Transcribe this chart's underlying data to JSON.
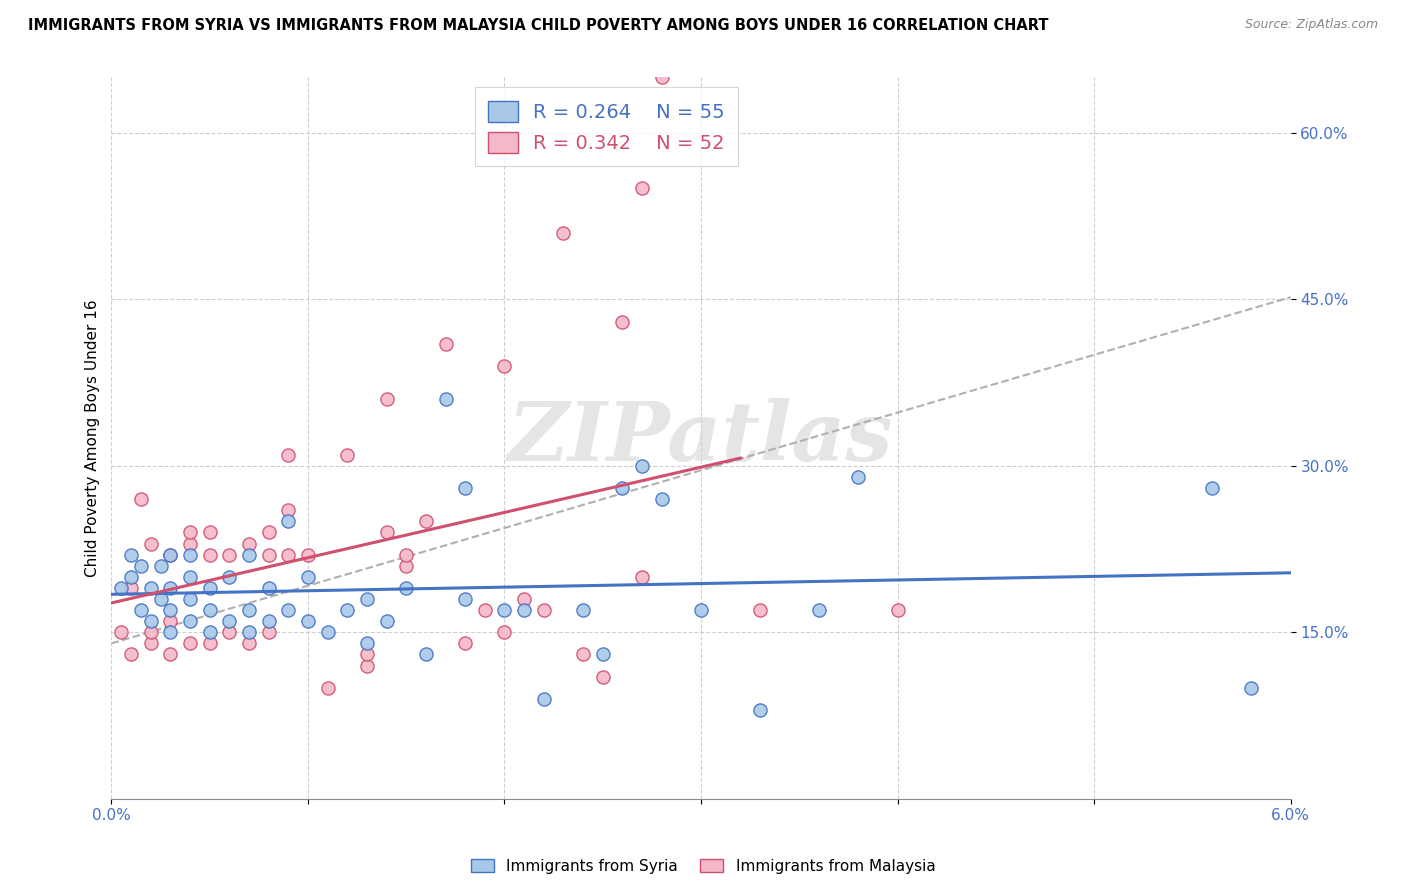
{
  "title": "IMMIGRANTS FROM SYRIA VS IMMIGRANTS FROM MALAYSIA CHILD POVERTY AMONG BOYS UNDER 16 CORRELATION CHART",
  "source": "Source: ZipAtlas.com",
  "ylabel": "Child Poverty Among Boys Under 16",
  "xmin": 0.0,
  "xmax": 0.06,
  "ymin": 0.0,
  "ymax": 0.65,
  "watermark": "ZIPatlas",
  "syria_color": "#a8c8e8",
  "syria_edge_color": "#4472c4",
  "malaysia_color": "#f5b8c8",
  "malaysia_edge_color": "#d05070",
  "syria_line_color": "#4472c4",
  "malaysia_line_color": "#d05070",
  "dashed_line_color": "#b0b0b0",
  "legend_R_syria": "R = 0.264",
  "legend_N_syria": "N = 55",
  "legend_R_malaysia": "R = 0.342",
  "legend_N_malaysia": "N = 52",
  "syria_x": [
    0.0005,
    0.001,
    0.001,
    0.0015,
    0.0015,
    0.002,
    0.002,
    0.0025,
    0.0025,
    0.003,
    0.003,
    0.003,
    0.003,
    0.004,
    0.004,
    0.004,
    0.004,
    0.005,
    0.005,
    0.005,
    0.006,
    0.006,
    0.007,
    0.007,
    0.007,
    0.008,
    0.008,
    0.009,
    0.009,
    0.01,
    0.01,
    0.011,
    0.012,
    0.013,
    0.013,
    0.014,
    0.015,
    0.016,
    0.017,
    0.018,
    0.018,
    0.02,
    0.021,
    0.022,
    0.024,
    0.025,
    0.026,
    0.027,
    0.028,
    0.03,
    0.033,
    0.036,
    0.038,
    0.056,
    0.058
  ],
  "syria_y": [
    0.19,
    0.2,
    0.22,
    0.17,
    0.21,
    0.16,
    0.19,
    0.18,
    0.21,
    0.15,
    0.17,
    0.19,
    0.22,
    0.16,
    0.18,
    0.2,
    0.22,
    0.15,
    0.17,
    0.19,
    0.16,
    0.2,
    0.15,
    0.17,
    0.22,
    0.16,
    0.19,
    0.17,
    0.25,
    0.16,
    0.2,
    0.15,
    0.17,
    0.14,
    0.18,
    0.16,
    0.19,
    0.13,
    0.36,
    0.28,
    0.18,
    0.17,
    0.17,
    0.09,
    0.17,
    0.13,
    0.28,
    0.3,
    0.27,
    0.17,
    0.08,
    0.17,
    0.29,
    0.28,
    0.1
  ],
  "malaysia_x": [
    0.0005,
    0.001,
    0.001,
    0.0015,
    0.002,
    0.002,
    0.002,
    0.003,
    0.003,
    0.003,
    0.004,
    0.004,
    0.004,
    0.005,
    0.005,
    0.005,
    0.006,
    0.006,
    0.007,
    0.007,
    0.008,
    0.008,
    0.008,
    0.009,
    0.009,
    0.009,
    0.01,
    0.011,
    0.012,
    0.013,
    0.013,
    0.014,
    0.014,
    0.015,
    0.015,
    0.016,
    0.017,
    0.018,
    0.019,
    0.02,
    0.02,
    0.021,
    0.022,
    0.023,
    0.024,
    0.025,
    0.026,
    0.027,
    0.027,
    0.028,
    0.033,
    0.04
  ],
  "malaysia_y": [
    0.15,
    0.13,
    0.19,
    0.27,
    0.14,
    0.15,
    0.23,
    0.13,
    0.16,
    0.22,
    0.14,
    0.23,
    0.24,
    0.14,
    0.22,
    0.24,
    0.15,
    0.22,
    0.14,
    0.23,
    0.15,
    0.22,
    0.24,
    0.22,
    0.26,
    0.31,
    0.22,
    0.1,
    0.31,
    0.12,
    0.13,
    0.24,
    0.36,
    0.21,
    0.22,
    0.25,
    0.41,
    0.14,
    0.17,
    0.15,
    0.39,
    0.18,
    0.17,
    0.51,
    0.13,
    0.11,
    0.43,
    0.55,
    0.2,
    0.65,
    0.17,
    0.17
  ],
  "syria_intercept": 0.17,
  "syria_slope": 1.55,
  "malaysia_intercept": 0.13,
  "malaysia_slope": 4.0,
  "dash_intercept": 0.14,
  "dash_slope": 5.2
}
